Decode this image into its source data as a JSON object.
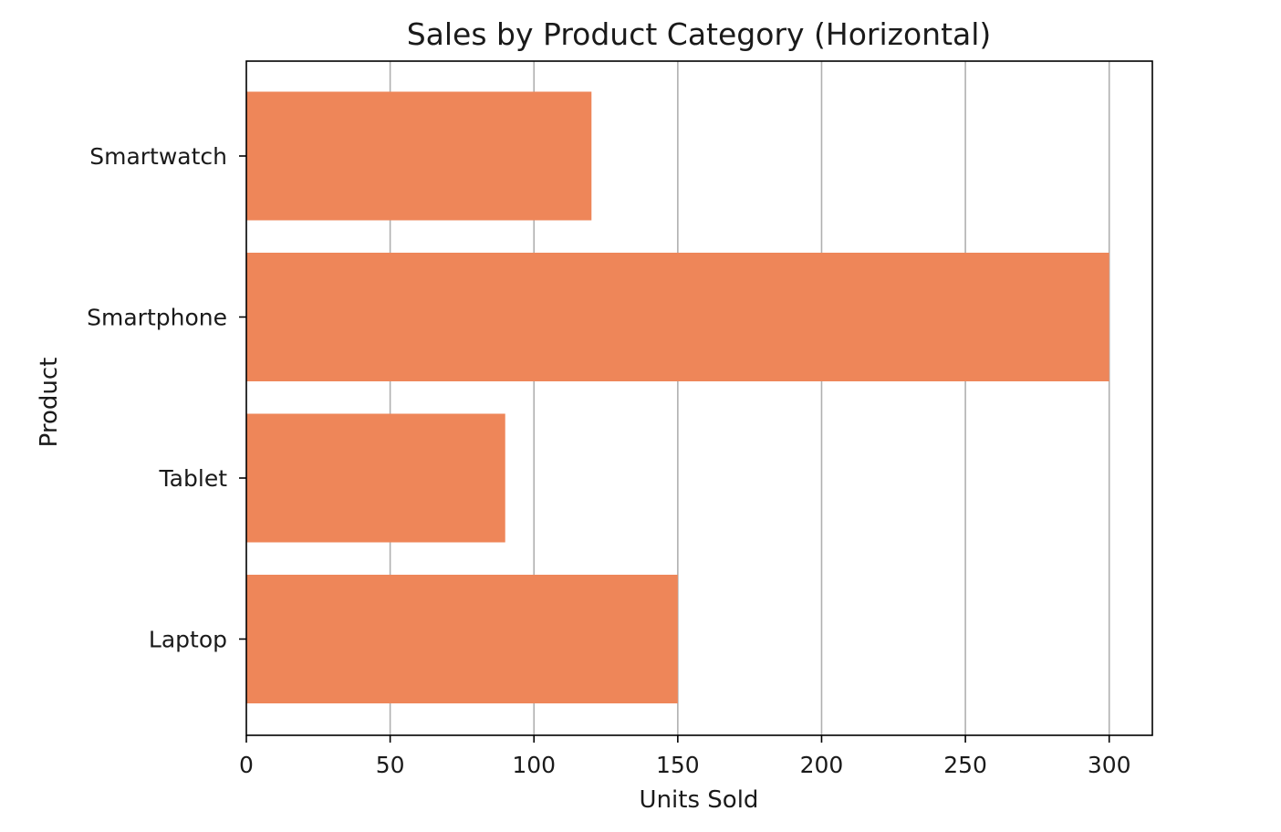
{
  "chart_data": {
    "type": "bar",
    "orientation": "horizontal",
    "title": "Sales by Product Category (Horizontal)",
    "xlabel": "Units Sold",
    "ylabel": "Product",
    "categories": [
      "Laptop",
      "Tablet",
      "Smartphone",
      "Smartwatch"
    ],
    "values": [
      150,
      90,
      300,
      120
    ],
    "xlim": [
      0,
      315
    ],
    "xticks": [
      0,
      50,
      100,
      150,
      200,
      250,
      300
    ],
    "grid": "x",
    "legend": "none",
    "bar_color": "#ee8659"
  }
}
